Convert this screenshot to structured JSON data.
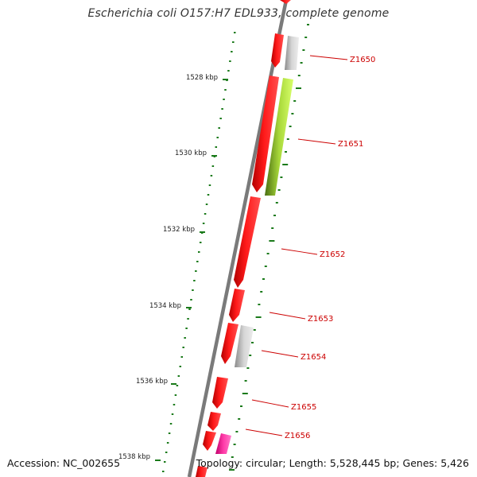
{
  "title": "Escherichia coli O157:H7 EDL933, complete genome",
  "footer": {
    "accession": "Accession: NC_002655",
    "summary": "Topology: circular; Length: 5,528,445 bp; Genes: 5,426"
  },
  "scale_labels": [
    "1528 kbp",
    "1530 kbp",
    "1532 kbp",
    "1534 kbp",
    "1536 kbp",
    "1538 kbp"
  ],
  "gene_labels": [
    "Z1650",
    "Z1651",
    "Z1652",
    "Z1653",
    "Z1654",
    "Z1655",
    "Z1656"
  ],
  "colors": {
    "backbone": "#7a7a7a",
    "gene_red": "#ff0000",
    "gene_grey": "#c8c8c8",
    "gene_green": "#9acd32",
    "gene_pink": "#ff1493",
    "label": "#cc0000",
    "tick": "#1a7a1a"
  }
}
